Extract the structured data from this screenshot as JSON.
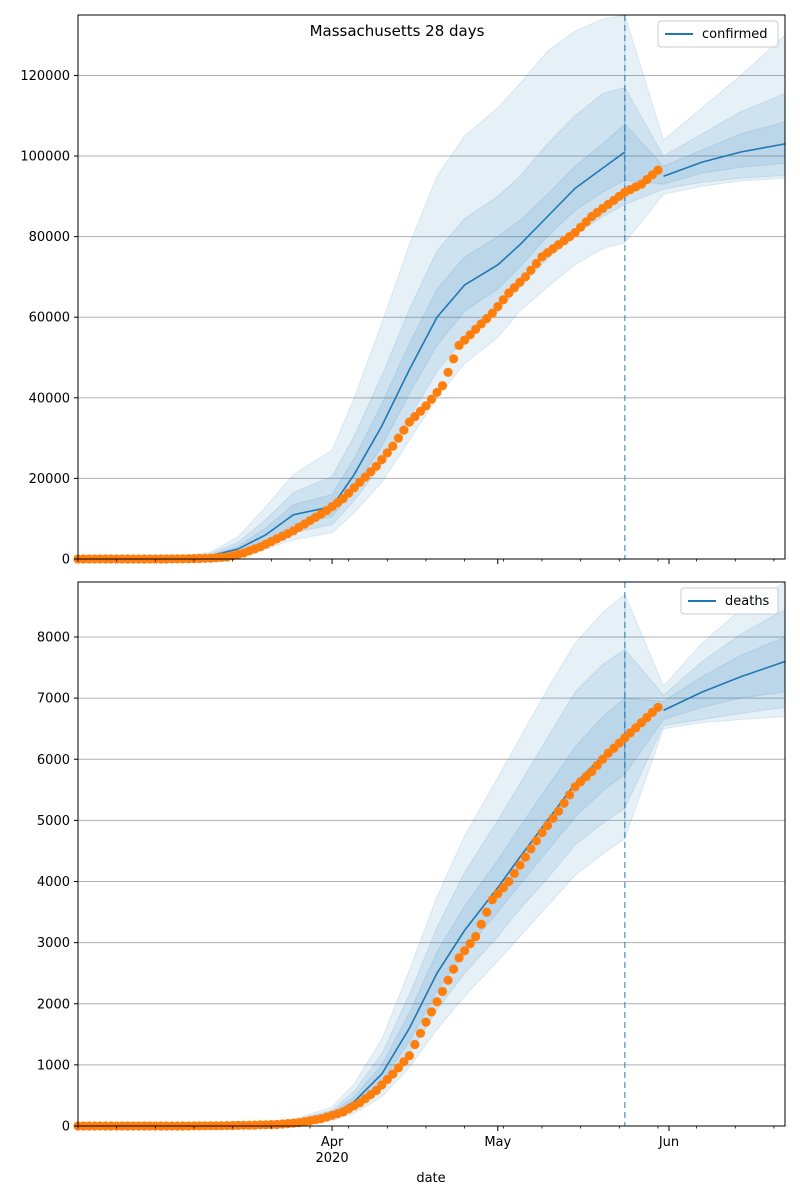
{
  "colors": {
    "line": "#1f77b4",
    "band": "#1f77b4",
    "marker": "#ff7f0e",
    "grid": "#b0b0b0",
    "forecast_line": "#1f77b4"
  },
  "chart_data": [
    {
      "type": "line",
      "title": "Massachusetts 28 days",
      "xlabel": "",
      "ylabel": "",
      "x_axis": {
        "type": "date",
        "start": "2020-02-15",
        "end": "2020-06-22"
      },
      "ylim": [
        0,
        135000
      ],
      "yticks": [
        0,
        20000,
        40000,
        60000,
        80000,
        100000,
        120000
      ],
      "grid": "y",
      "legend": {
        "position": "top-right",
        "entries": [
          "confirmed"
        ]
      },
      "forecast_start": "2020-05-24",
      "series": [
        {
          "name": "confirmed",
          "kind": "model-median-line",
          "x": [
            "2020-02-15",
            "2020-03-01",
            "2020-03-10",
            "2020-03-15",
            "2020-03-20",
            "2020-03-25",
            "2020-04-01",
            "2020-04-05",
            "2020-04-10",
            "2020-04-15",
            "2020-04-20",
            "2020-04-25",
            "2020-05-01",
            "2020-05-05",
            "2020-05-10",
            "2020-05-15",
            "2020-05-20",
            "2020-05-24",
            "2020-05-31",
            "2020-06-07",
            "2020-06-14",
            "2020-06-22"
          ],
          "values": [
            0,
            100,
            800,
            2500,
            6000,
            11000,
            13000,
            21000,
            33000,
            47000,
            60000,
            68000,
            73000,
            78000,
            85000,
            92000,
            97000,
            101000,
            95000,
            98500,
            101000,
            103000
          ],
          "band_inner_lower": [
            0,
            80,
            600,
            1900,
            4500,
            8500,
            10500,
            17500,
            28000,
            41000,
            53000,
            61500,
            67000,
            72500,
            80000,
            86500,
            91000,
            94000,
            93000,
            95800,
            97200,
            98200
          ],
          "band_inner_upper": [
            0,
            130,
            1000,
            3200,
            7700,
            13500,
            16000,
            25000,
            38500,
            53500,
            67000,
            75000,
            80000,
            84000,
            90500,
            97500,
            103000,
            108000,
            97500,
            101500,
            105500,
            108500
          ],
          "band_mid_lower": [
            0,
            60,
            400,
            1400,
            3400,
            6500,
            8500,
            14500,
            23500,
            35000,
            46500,
            55000,
            61500,
            67500,
            74500,
            80500,
            85000,
            88000,
            91800,
            93500,
            94500,
            95200
          ],
          "band_mid_upper": [
            0,
            160,
            1300,
            4200,
            9800,
            16500,
            20500,
            30500,
            45500,
            62000,
            76500,
            84500,
            90000,
            95000,
            103000,
            110000,
            115500,
            117000,
            100000,
            105500,
            111000,
            115500
          ],
          "band_outer_lower": [
            0,
            40,
            250,
            900,
            2400,
            4800,
            6500,
            11500,
            19000,
            29500,
            40000,
            48500,
            55000,
            61500,
            67500,
            73000,
            77000,
            78500,
            90500,
            92500,
            93800,
            94500
          ],
          "band_outer_upper": [
            0,
            200,
            1700,
            5500,
            13000,
            21000,
            27000,
            40000,
            58500,
            78000,
            95000,
            105000,
            112000,
            118000,
            126000,
            131000,
            134000,
            135000,
            104000,
            112000,
            120000,
            130000
          ]
        },
        {
          "name": "",
          "kind": "observed-points",
          "x": [
            "2020-02-15",
            "2020-02-20",
            "2020-02-25",
            "2020-03-01",
            "2020-03-05",
            "2020-03-10",
            "2020-03-13",
            "2020-03-16",
            "2020-03-19",
            "2020-03-22",
            "2020-03-25",
            "2020-03-28",
            "2020-03-31",
            "2020-04-03",
            "2020-04-06",
            "2020-04-09",
            "2020-04-12",
            "2020-04-15",
            "2020-04-18",
            "2020-04-21",
            "2020-04-24",
            "2020-04-27",
            "2020-04-30",
            "2020-05-03",
            "2020-05-06",
            "2020-05-09",
            "2020-05-12",
            "2020-05-15",
            "2020-05-18",
            "2020-05-21",
            "2020-05-24",
            "2020-05-27",
            "2020-05-30"
          ],
          "values": [
            0,
            0,
            0,
            5,
            30,
            200,
            500,
            1500,
            3000,
            5000,
            7000,
            9500,
            12000,
            15000,
            19000,
            23000,
            28000,
            34000,
            38000,
            43000,
            53000,
            57000,
            61000,
            66000,
            70000,
            75000,
            78000,
            81000,
            85000,
            88000,
            91000,
            93000,
            96500
          ]
        }
      ]
    },
    {
      "type": "line",
      "title": "",
      "xlabel": "date",
      "ylabel": "",
      "x_axis": {
        "type": "date",
        "start": "2020-02-15",
        "end": "2020-06-22"
      },
      "ylim": [
        0,
        8900
      ],
      "yticks": [
        0,
        1000,
        2000,
        3000,
        4000,
        5000,
        6000,
        7000,
        8000
      ],
      "xticks": [
        {
          "date": "2020-04-01",
          "label": "Apr",
          "sublabel": "2020"
        },
        {
          "date": "2020-05-01",
          "label": "May",
          "sublabel": ""
        },
        {
          "date": "2020-06-01",
          "label": "Jun",
          "sublabel": ""
        }
      ],
      "grid": "y",
      "legend": {
        "position": "top-right",
        "entries": [
          "deaths"
        ]
      },
      "forecast_start": "2020-05-24",
      "series": [
        {
          "name": "deaths",
          "kind": "model-median-line",
          "x": [
            "2020-02-15",
            "2020-03-15",
            "2020-03-25",
            "2020-04-01",
            "2020-04-05",
            "2020-04-10",
            "2020-04-15",
            "2020-04-20",
            "2020-04-25",
            "2020-05-01",
            "2020-05-05",
            "2020-05-10",
            "2020-05-15",
            "2020-05-20",
            "2020-05-24",
            "2020-05-31",
            "2020-06-07",
            "2020-06-14",
            "2020-06-22"
          ],
          "values": [
            0,
            20,
            60,
            180,
            400,
            850,
            1600,
            2500,
            3200,
            3900,
            4400,
            5000,
            5600,
            6050,
            6350,
            6800,
            7100,
            7350,
            7600
          ],
          "band_inner_lower": [
            0,
            15,
            45,
            145,
            330,
            720,
            1380,
            2200,
            2850,
            3500,
            3950,
            4500,
            5050,
            5480,
            5750,
            6650,
            6850,
            7000,
            7100
          ],
          "band_inner_upper": [
            0,
            25,
            75,
            220,
            480,
            1000,
            1850,
            2850,
            3600,
            4350,
            4900,
            5550,
            6200,
            6700,
            7000,
            6950,
            7350,
            7700,
            8000
          ],
          "band_mid_lower": [
            0,
            10,
            35,
            115,
            270,
            600,
            1180,
            1900,
            2500,
            3100,
            3550,
            4050,
            4600,
            4950,
            5200,
            6550,
            6650,
            6750,
            6850
          ],
          "band_mid_upper": [
            0,
            30,
            90,
            260,
            570,
            1180,
            2150,
            3250,
            4150,
            5000,
            5600,
            6350,
            7100,
            7550,
            7800,
            7050,
            7600,
            8050,
            8450
          ],
          "band_outer_lower": [
            0,
            5,
            25,
            90,
            210,
            480,
            960,
            1580,
            2120,
            2700,
            3100,
            3600,
            4100,
            4450,
            4700,
            6500,
            6600,
            6650,
            6700
          ],
          "band_outer_upper": [
            0,
            40,
            110,
            310,
            690,
            1420,
            2550,
            3750,
            4750,
            5700,
            6350,
            7150,
            7900,
            8400,
            8700,
            7200,
            7900,
            8450,
            8900
          ]
        },
        {
          "name": "",
          "kind": "observed-points",
          "x": [
            "2020-02-15",
            "2020-02-25",
            "2020-03-05",
            "2020-03-12",
            "2020-03-18",
            "2020-03-22",
            "2020-03-26",
            "2020-03-30",
            "2020-04-03",
            "2020-04-06",
            "2020-04-09",
            "2020-04-12",
            "2020-04-15",
            "2020-04-18",
            "2020-04-21",
            "2020-04-24",
            "2020-04-27",
            "2020-04-30",
            "2020-05-03",
            "2020-05-06",
            "2020-05-09",
            "2020-05-12",
            "2020-05-15",
            "2020-05-18",
            "2020-05-21",
            "2020-05-24",
            "2020-05-27",
            "2020-05-30"
          ],
          "values": [
            0,
            0,
            0,
            5,
            15,
            25,
            55,
            120,
            230,
            380,
            580,
            850,
            1150,
            1700,
            2200,
            2750,
            3100,
            3700,
            4000,
            4400,
            4800,
            5150,
            5550,
            5800,
            6100,
            6350,
            6600,
            6850
          ]
        }
      ]
    }
  ]
}
